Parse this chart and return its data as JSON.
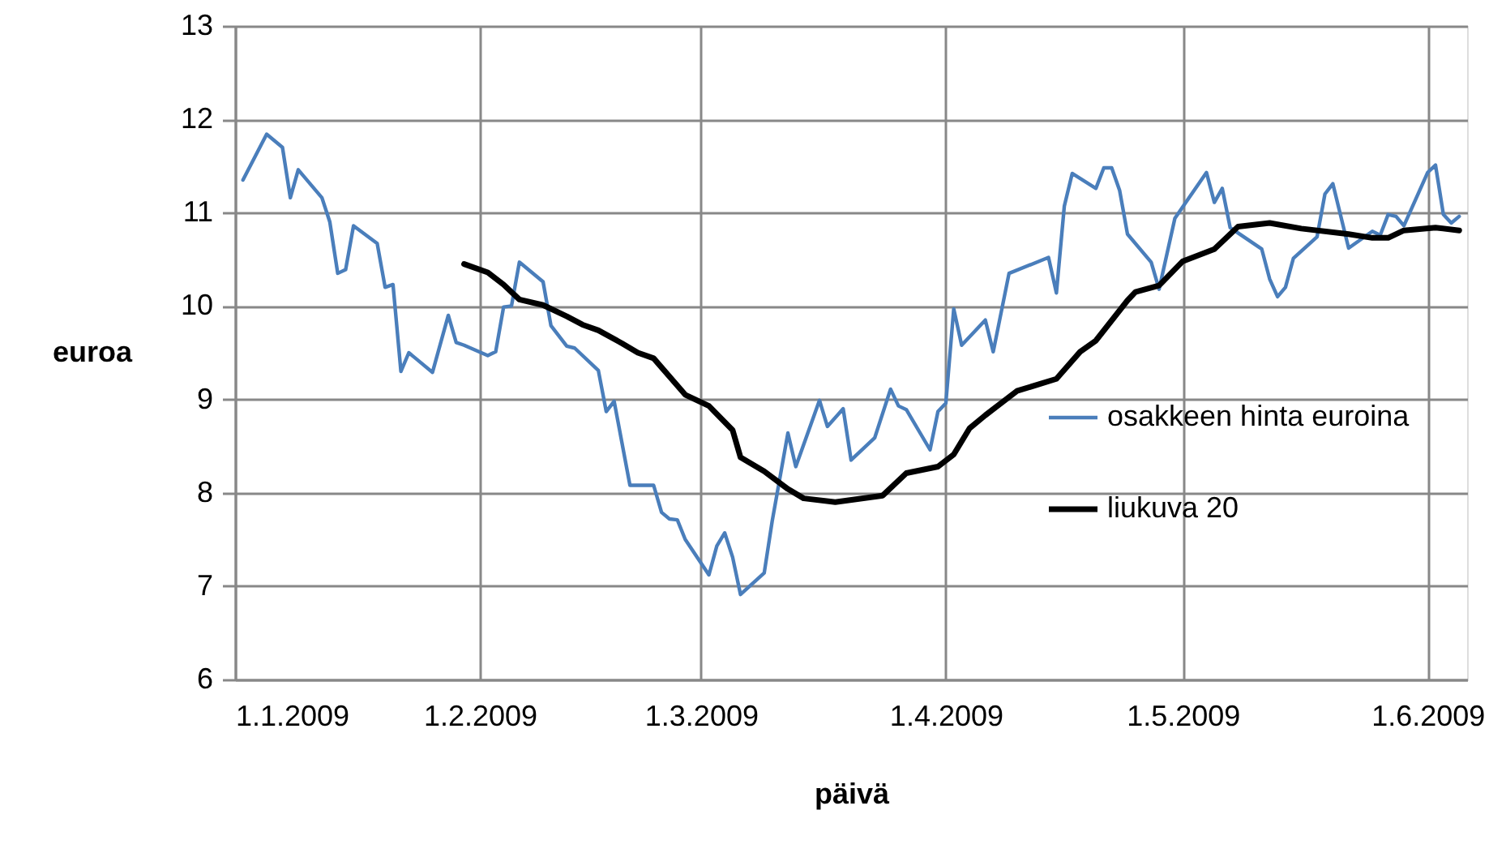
{
  "chart_data": {
    "type": "line",
    "xlabel": "päivä",
    "ylabel": "euroa",
    "xlim": [
      "2009-01-01",
      "2009-06-06"
    ],
    "ylim": [
      6,
      13
    ],
    "xticks": [
      {
        "value": "2009-01-01",
        "label": "1.1.2009"
      },
      {
        "value": "2009-02-01",
        "label": "1.2.2009"
      },
      {
        "value": "2009-03-01",
        "label": "1.3.2009"
      },
      {
        "value": "2009-04-01",
        "label": "1.4.2009"
      },
      {
        "value": "2009-05-01",
        "label": "1.5.2009"
      },
      {
        "value": "2009-06-01",
        "label": "1.6.2009"
      }
    ],
    "yticks": [
      6,
      7,
      8,
      9,
      10,
      11,
      12,
      13
    ],
    "grid": true,
    "legend": "right",
    "marker": "none",
    "line_style": "solid",
    "series": [
      {
        "name": "osakkeen hinta euroina",
        "color": "#4a7ebb",
        "x": [
          "2009-01-02",
          "2009-01-05",
          "2009-01-07",
          "2009-01-08",
          "2009-01-09",
          "2009-01-12",
          "2009-01-13",
          "2009-01-14",
          "2009-01-15",
          "2009-01-16",
          "2009-01-19",
          "2009-01-20",
          "2009-01-21",
          "2009-01-22",
          "2009-01-23",
          "2009-01-26",
          "2009-01-28",
          "2009-01-29",
          "2009-01-30",
          "2009-02-02",
          "2009-02-03",
          "2009-02-04",
          "2009-02-05",
          "2009-02-06",
          "2009-02-09",
          "2009-02-10",
          "2009-02-12",
          "2009-02-13",
          "2009-02-16",
          "2009-02-17",
          "2009-02-18",
          "2009-02-20",
          "2009-02-23",
          "2009-02-24",
          "2009-02-25",
          "2009-02-26",
          "2009-02-27",
          "2009-03-02",
          "2009-03-03",
          "2009-03-04",
          "2009-03-05",
          "2009-03-06",
          "2009-03-09",
          "2009-03-10",
          "2009-03-12",
          "2009-03-13",
          "2009-03-16",
          "2009-03-17",
          "2009-03-19",
          "2009-03-20",
          "2009-03-23",
          "2009-03-25",
          "2009-03-26",
          "2009-03-27",
          "2009-03-30",
          "2009-03-31",
          "2009-04-01",
          "2009-04-02",
          "2009-04-03",
          "2009-04-06",
          "2009-04-07",
          "2009-04-09",
          "2009-04-14",
          "2009-04-15",
          "2009-04-16",
          "2009-04-17",
          "2009-04-20",
          "2009-04-21",
          "2009-04-22",
          "2009-04-23",
          "2009-04-24",
          "2009-04-27",
          "2009-04-28",
          "2009-04-30",
          "2009-05-04",
          "2009-05-05",
          "2009-05-06",
          "2009-05-07",
          "2009-05-11",
          "2009-05-12",
          "2009-05-13",
          "2009-05-14",
          "2009-05-15",
          "2009-05-18",
          "2009-05-19",
          "2009-05-20",
          "2009-05-22",
          "2009-05-25",
          "2009-05-26",
          "2009-05-27",
          "2009-05-28",
          "2009-05-29",
          "2009-06-01",
          "2009-06-02",
          "2009-06-03",
          "2009-06-04",
          "2009-06-05"
        ],
        "values": [
          11.35,
          11.84,
          11.7,
          11.16,
          11.46,
          11.16,
          10.9,
          10.35,
          10.39,
          10.86,
          10.67,
          10.2,
          10.23,
          9.3,
          9.5,
          9.29,
          9.9,
          9.61,
          9.58,
          9.47,
          9.51,
          9.99,
          10.0,
          10.47,
          10.26,
          9.79,
          9.57,
          9.55,
          9.31,
          8.87,
          8.98,
          8.08,
          8.08,
          7.79,
          7.72,
          7.71,
          7.5,
          7.12,
          7.43,
          7.57,
          7.31,
          6.91,
          7.14,
          7.69,
          8.64,
          8.28,
          8.99,
          8.71,
          8.9,
          8.35,
          8.59,
          9.11,
          8.93,
          8.89,
          8.46,
          8.87,
          8.96,
          9.97,
          9.58,
          9.85,
          9.51,
          10.35,
          10.52,
          10.14,
          11.07,
          11.42,
          11.26,
          11.48,
          11.48,
          11.24,
          10.77,
          10.47,
          10.18,
          10.94,
          11.43,
          11.11,
          11.26,
          10.84,
          10.61,
          10.29,
          10.1,
          10.2,
          10.51,
          10.74,
          11.2,
          11.31,
          10.62,
          10.8,
          10.76,
          10.98,
          10.96,
          10.86,
          11.43,
          11.51,
          10.98,
          10.89,
          10.96
        ]
      },
      {
        "name": "liukuva 20",
        "color": "#000000",
        "x": [
          "2009-01-30",
          "2009-02-02",
          "2009-02-04",
          "2009-02-06",
          "2009-02-09",
          "2009-02-12",
          "2009-02-14",
          "2009-02-16",
          "2009-02-19",
          "2009-02-21",
          "2009-02-23",
          "2009-02-27",
          "2009-03-02",
          "2009-03-05",
          "2009-03-06",
          "2009-03-09",
          "2009-03-12",
          "2009-03-14",
          "2009-03-18",
          "2009-03-24",
          "2009-03-27",
          "2009-03-31",
          "2009-04-02",
          "2009-04-04",
          "2009-04-06",
          "2009-04-10",
          "2009-04-15",
          "2009-04-18",
          "2009-04-20",
          "2009-04-24",
          "2009-04-25",
          "2009-04-28",
          "2009-05-01",
          "2009-05-05",
          "2009-05-08",
          "2009-05-12",
          "2009-05-16",
          "2009-05-22",
          "2009-05-25",
          "2009-05-27",
          "2009-05-29",
          "2009-06-02",
          "2009-06-05"
        ],
        "values": [
          10.45,
          10.36,
          10.23,
          10.07,
          10.01,
          9.89,
          9.8,
          9.74,
          9.6,
          9.5,
          9.44,
          9.05,
          8.93,
          8.67,
          8.38,
          8.23,
          8.04,
          7.94,
          7.9,
          7.97,
          8.21,
          8.28,
          8.41,
          8.69,
          8.83,
          9.09,
          9.22,
          9.51,
          9.63,
          10.06,
          10.15,
          10.22,
          10.48,
          10.61,
          10.85,
          10.89,
          10.83,
          10.77,
          10.73,
          10.73,
          10.81,
          10.84,
          10.81
        ]
      }
    ]
  }
}
